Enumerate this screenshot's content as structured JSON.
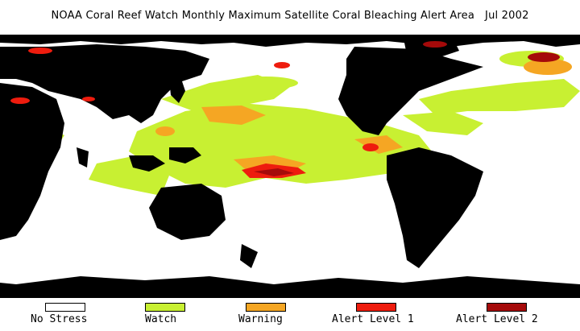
{
  "title": "NOAA Coral Reef Watch Monthly Maximum Satellite Coral Bleaching Alert Area",
  "date": "Jul 2002",
  "colors": {
    "ocean": "#ffffff",
    "land": "#000000",
    "no_stress": "#ffffff",
    "watch": "#c8f032",
    "warning": "#f5a623",
    "alert1": "#ee1c0e",
    "alert2": "#a50a0a"
  },
  "legend": [
    {
      "label": "No Stress",
      "color": "#ffffff"
    },
    {
      "label": "Watch",
      "color": "#c8f032"
    },
    {
      "label": "Warning",
      "color": "#f5a623"
    },
    {
      "label": "Alert Level 1",
      "color": "#ee1c0e"
    },
    {
      "label": "Alert Level 2",
      "color": "#a50a0a"
    }
  ]
}
